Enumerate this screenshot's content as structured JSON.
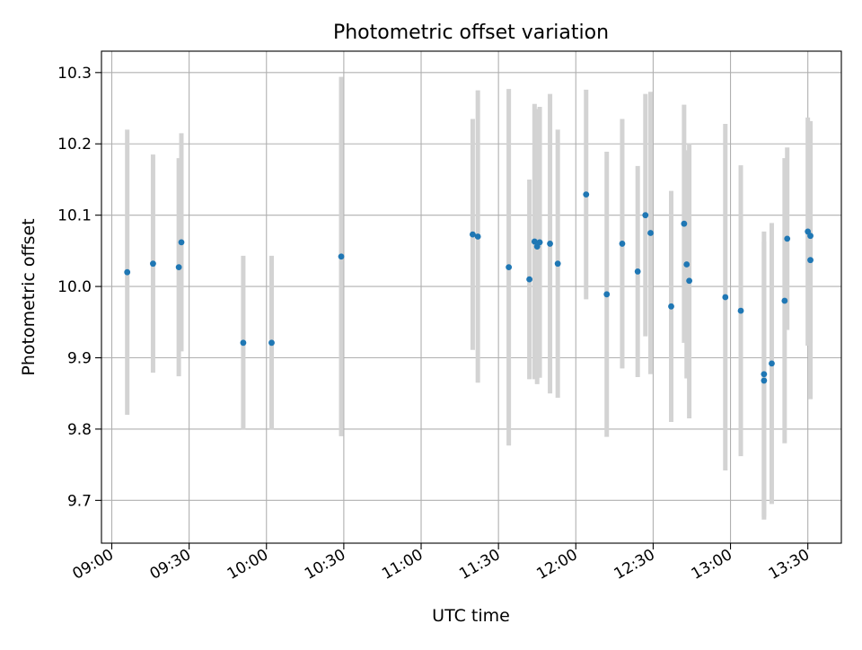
{
  "chart_data": {
    "type": "scatter",
    "title": "Photometric offset variation",
    "xlabel": "UTC time",
    "ylabel": "Photometric offset",
    "x_axis_type": "time",
    "xlim": [
      "08:56",
      "13:43"
    ],
    "ylim": [
      9.64,
      10.33
    ],
    "x_ticks": [
      "09:00",
      "09:30",
      "10:00",
      "10:30",
      "11:00",
      "11:30",
      "12:00",
      "12:30",
      "13:00",
      "13:30"
    ],
    "y_ticks": [
      "9.7",
      "9.8",
      "9.9",
      "10.0",
      "10.1",
      "10.2",
      "10.3"
    ],
    "grid": true,
    "colors": {
      "points": "#1f77b4",
      "errorbars": "#d3d3d3",
      "grid": "#b0b0b0"
    },
    "series": [
      {
        "points": [
          {
            "x": "09:06",
            "y": 10.02,
            "err": 0.2
          },
          {
            "x": "09:16",
            "y": 10.032,
            "err": 0.153
          },
          {
            "x": "09:26",
            "y": 10.027,
            "err": 0.153
          },
          {
            "x": "09:27",
            "y": 10.062,
            "err": 0.153
          },
          {
            "x": "09:51",
            "y": 9.921,
            "err": 0.122
          },
          {
            "x": "10:02",
            "y": 9.921,
            "err": 0.122
          },
          {
            "x": "10:29",
            "y": 10.042,
            "err": 0.252
          },
          {
            "x": "11:20",
            "y": 10.073,
            "err": 0.162
          },
          {
            "x": "11:22",
            "y": 10.07,
            "err": 0.205
          },
          {
            "x": "11:34",
            "y": 10.027,
            "err": 0.25
          },
          {
            "x": "11:42",
            "y": 10.01,
            "err": 0.14
          },
          {
            "x": "11:44",
            "y": 10.063,
            "err": 0.193
          },
          {
            "x": "11:45",
            "y": 10.056,
            "err": 0.193
          },
          {
            "x": "11:46",
            "y": 10.062,
            "err": 0.19
          },
          {
            "x": "11:50",
            "y": 10.06,
            "err": 0.21
          },
          {
            "x": "11:53",
            "y": 10.032,
            "err": 0.188
          },
          {
            "x": "12:04",
            "y": 10.129,
            "err": 0.147
          },
          {
            "x": "12:12",
            "y": 9.989,
            "err": 0.2
          },
          {
            "x": "12:18",
            "y": 10.06,
            "err": 0.175
          },
          {
            "x": "12:24",
            "y": 10.021,
            "err": 0.148
          },
          {
            "x": "12:27",
            "y": 10.1,
            "err": 0.17
          },
          {
            "x": "12:29",
            "y": 10.075,
            "err": 0.198
          },
          {
            "x": "12:37",
            "y": 9.972,
            "err": 0.162
          },
          {
            "x": "12:42",
            "y": 10.088,
            "err": 0.167
          },
          {
            "x": "12:43",
            "y": 10.031,
            "err": 0.16
          },
          {
            "x": "12:44",
            "y": 10.008,
            "err": 0.193
          },
          {
            "x": "12:58",
            "y": 9.985,
            "err": 0.243
          },
          {
            "x": "13:04",
            "y": 9.966,
            "err": 0.204
          },
          {
            "x": "13:13",
            "y": 9.868,
            "err": 0.195
          },
          {
            "x": "13:13",
            "y": 9.877,
            "err": 0.2
          },
          {
            "x": "13:16",
            "y": 9.892,
            "err": 0.197
          },
          {
            "x": "13:21",
            "y": 9.98,
            "err": 0.2
          },
          {
            "x": "13:22",
            "y": 10.067,
            "err": 0.128
          },
          {
            "x": "13:30",
            "y": 10.077,
            "err": 0.16
          },
          {
            "x": "13:31",
            "y": 10.037,
            "err": 0.195
          },
          {
            "x": "13:31",
            "y": 10.071,
            "err": 0.15
          }
        ]
      }
    ]
  }
}
